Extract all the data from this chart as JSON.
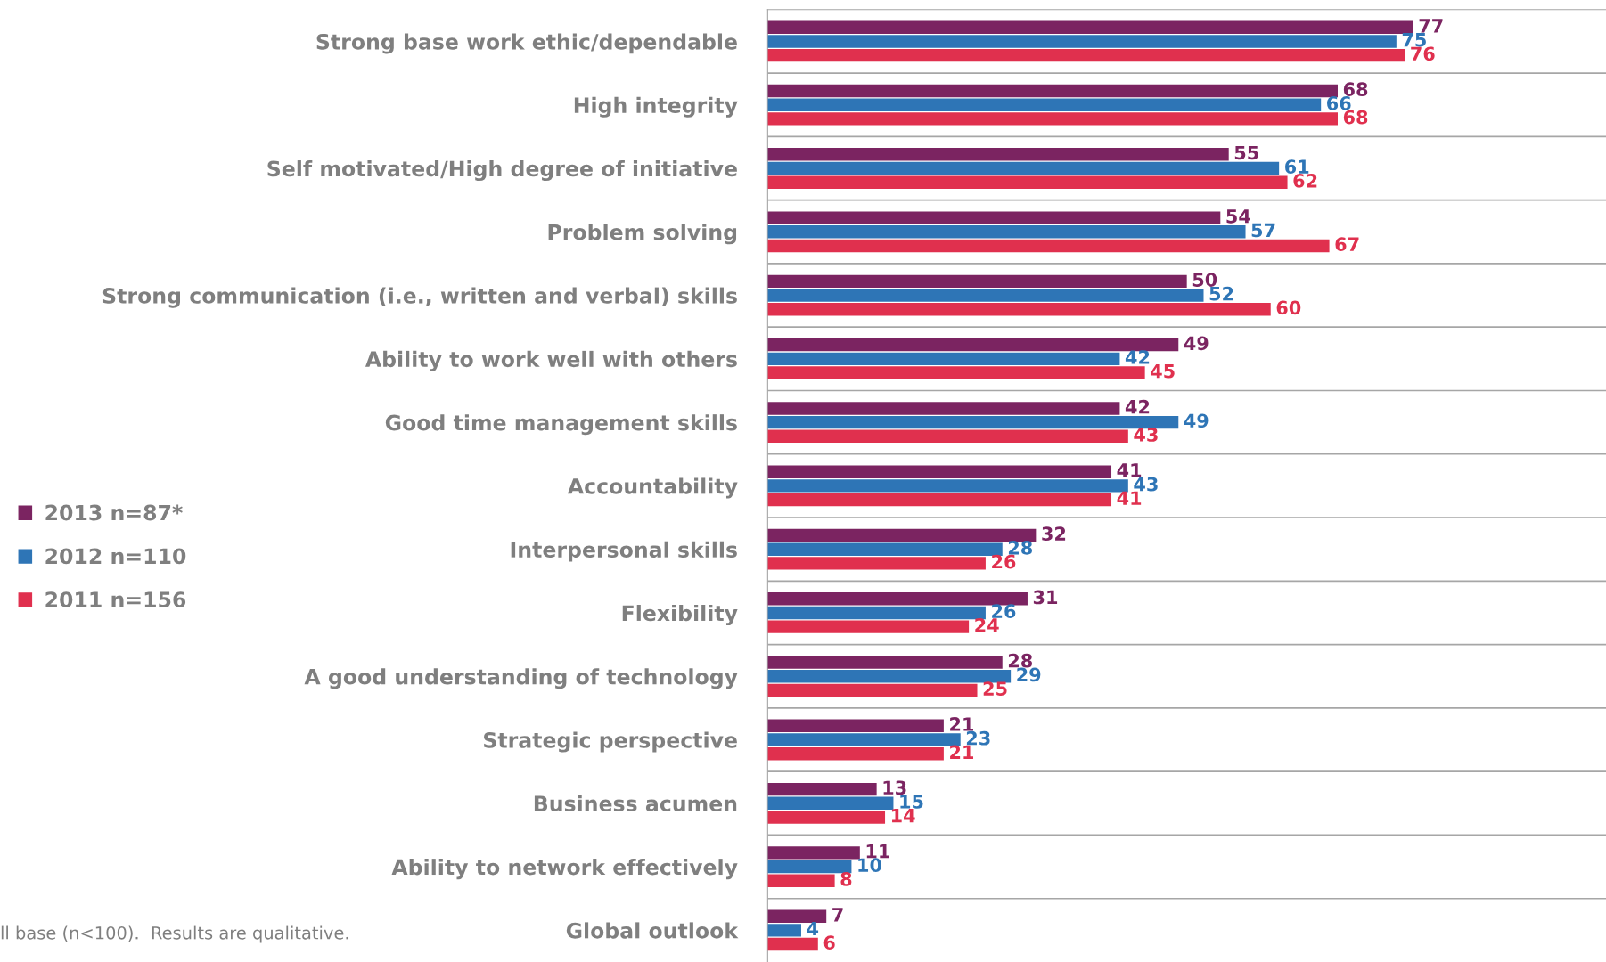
{
  "chart_data": {
    "type": "bar",
    "orientation": "horizontal",
    "categories": [
      "Strong base work ethic/dependable",
      "High integrity",
      "Self motivated/High degree of initiative",
      "Problem solving",
      "Strong communication (i.e., written and verbal) skills",
      "Ability to work well with others",
      "Good time management skills",
      "Accountability",
      "Interpersonal skills",
      "Flexibility",
      "A good understanding of technology",
      "Strategic perspective",
      "Business acumen",
      "Ability to network effectively",
      "Global outlook"
    ],
    "series": [
      {
        "name": "2013 n=87*",
        "color": "#7b2461",
        "values": [
          77,
          68,
          55,
          54,
          50,
          49,
          42,
          41,
          32,
          31,
          28,
          21,
          13,
          11,
          7
        ]
      },
      {
        "name": "2012 n=110",
        "color": "#2e75b6",
        "values": [
          75,
          66,
          61,
          57,
          52,
          42,
          49,
          43,
          28,
          26,
          29,
          23,
          15,
          10,
          4
        ]
      },
      {
        "name": "2011 n=156",
        "color": "#e0304e",
        "values": [
          76,
          68,
          62,
          67,
          60,
          45,
          43,
          41,
          26,
          24,
          25,
          21,
          14,
          8,
          6
        ]
      }
    ],
    "xlim": [
      0,
      100
    ],
    "data_labels": true,
    "grid": "y",
    "legend": "left",
    "tick_labels": "y",
    "annotations": [
      "ll base (n<100).  Results are qualitative."
    ]
  }
}
